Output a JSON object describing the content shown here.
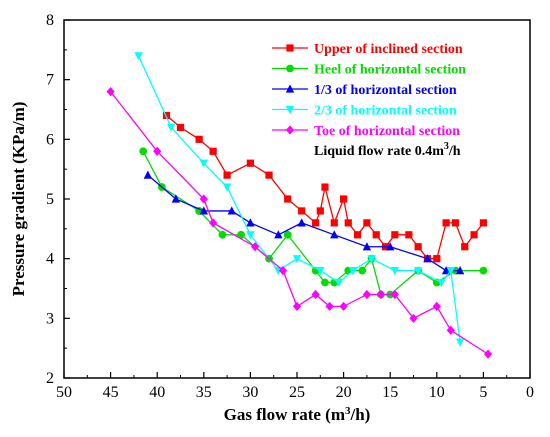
{
  "chart_data": {
    "type": "line",
    "xlabel": "Gas flow rate (m³/h)",
    "ylabel": "Pressure gradient (KPa/m)",
    "xlim": [
      50,
      0
    ],
    "ylim": [
      2,
      8
    ],
    "x_reversed": true,
    "xticks": [
      "50",
      "45",
      "40",
      "35",
      "30",
      "25",
      "20",
      "15",
      "10",
      "5",
      "0"
    ],
    "yticks": [
      "2",
      "3",
      "4",
      "5",
      "6",
      "7",
      "8"
    ],
    "legend_position": "top-right",
    "annotation": {
      "text": "Liquid flow rate  0.4m",
      "sup": "3",
      "tail": "/h"
    },
    "series": [
      {
        "name": "Upper of inclined section",
        "color": "#ff0000",
        "marker": "square",
        "x": [
          39,
          37.5,
          35.5,
          34,
          32.5,
          30,
          28,
          26,
          24.5,
          23,
          22.5,
          22,
          21,
          20,
          19.5,
          18.5,
          17.5,
          16.5,
          15.5,
          14.5,
          13,
          12,
          11,
          10,
          9,
          8,
          7,
          6,
          5
        ],
        "y": [
          6.4,
          6.2,
          6.0,
          5.8,
          5.4,
          5.6,
          5.4,
          5.0,
          4.8,
          4.6,
          4.8,
          5.2,
          4.6,
          5.0,
          4.6,
          4.4,
          4.6,
          4.4,
          4.2,
          4.4,
          4.4,
          4.2,
          4.0,
          4.0,
          4.6,
          4.6,
          4.2,
          4.4,
          4.6
        ]
      },
      {
        "name": "Heel of horizontal section",
        "color": "#00dd00",
        "marker": "circle",
        "x": [
          41.5,
          39.5,
          35.5,
          33,
          31,
          28,
          26,
          23,
          22,
          21,
          19.5,
          18,
          17,
          16,
          15,
          12,
          10,
          8,
          5
        ],
        "y": [
          5.8,
          5.2,
          4.8,
          4.4,
          4.4,
          4.0,
          4.4,
          3.8,
          3.6,
          3.6,
          3.8,
          3.8,
          4.0,
          3.4,
          3.4,
          3.8,
          3.6,
          3.8,
          3.8
        ]
      },
      {
        "name": "1/3 of horizontal section",
        "color": "#0000ff",
        "marker": "triangle",
        "x": [
          41,
          38,
          35,
          32,
          30,
          27,
          24.5,
          21,
          17.5,
          15,
          11,
          9,
          7.5
        ],
        "y": [
          5.4,
          5.0,
          4.8,
          4.8,
          4.6,
          4.4,
          4.6,
          4.4,
          4.2,
          4.2,
          4.0,
          3.8,
          3.8
        ]
      },
      {
        "name": "2/3 of horizontal section",
        "color": "#00ffff",
        "marker": "triangle-down",
        "x": [
          42,
          38.5,
          35,
          32.5,
          30,
          27,
          25,
          22.5,
          20.5,
          19,
          17,
          14.5,
          12,
          9.5,
          8.5,
          7.5
        ],
        "y": [
          7.4,
          6.2,
          5.6,
          5.2,
          4.4,
          3.8,
          4.0,
          3.8,
          3.6,
          3.8,
          4.0,
          3.8,
          3.8,
          3.6,
          3.8,
          2.6
        ]
      },
      {
        "name": "Toe of horizontal section",
        "color": "#ff00ff",
        "marker": "diamond",
        "x": [
          45,
          40,
          35,
          34,
          29.5,
          26.5,
          25,
          23,
          21.5,
          20,
          17.5,
          16,
          14.5,
          12.5,
          10,
          8.5,
          4.5
        ],
        "y": [
          6.8,
          5.8,
          5.0,
          4.6,
          4.2,
          3.8,
          3.2,
          3.4,
          3.2,
          3.2,
          3.4,
          3.4,
          3.4,
          3.0,
          3.2,
          2.8,
          2.4
        ]
      }
    ]
  }
}
